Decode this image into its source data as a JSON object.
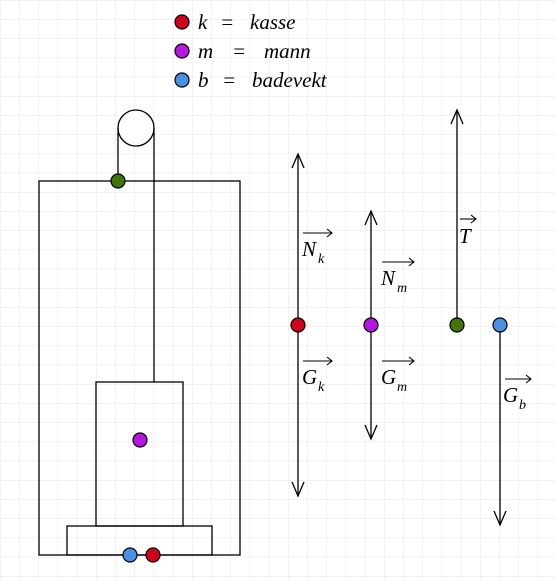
{
  "legend": [
    {
      "symbol": "k",
      "eq": "=",
      "meaning": "kasse",
      "color": "#d0021b"
    },
    {
      "symbol": "m",
      "eq": "=",
      "meaning": "mann",
      "color": "#b517e0"
    },
    {
      "symbol": "b",
      "eq": "=",
      "meaning": "badevekt",
      "color": "#4a90e2"
    }
  ],
  "colors": {
    "kasse": "#d0021b",
    "mann": "#b517e0",
    "badevekt": "#4a90e2",
    "rope_point": "#417505",
    "grid": "#e6e6e6",
    "line": "#000000"
  },
  "vectors": {
    "N_k": {
      "letter": "N",
      "sub": "k"
    },
    "G_k": {
      "letter": "G",
      "sub": "k"
    },
    "N_m": {
      "letter": "N",
      "sub": "m"
    },
    "G_m": {
      "letter": "G",
      "sub": "m"
    },
    "T": {
      "letter": "T",
      "sub": ""
    },
    "G_b": {
      "letter": "G",
      "sub": "b"
    }
  }
}
